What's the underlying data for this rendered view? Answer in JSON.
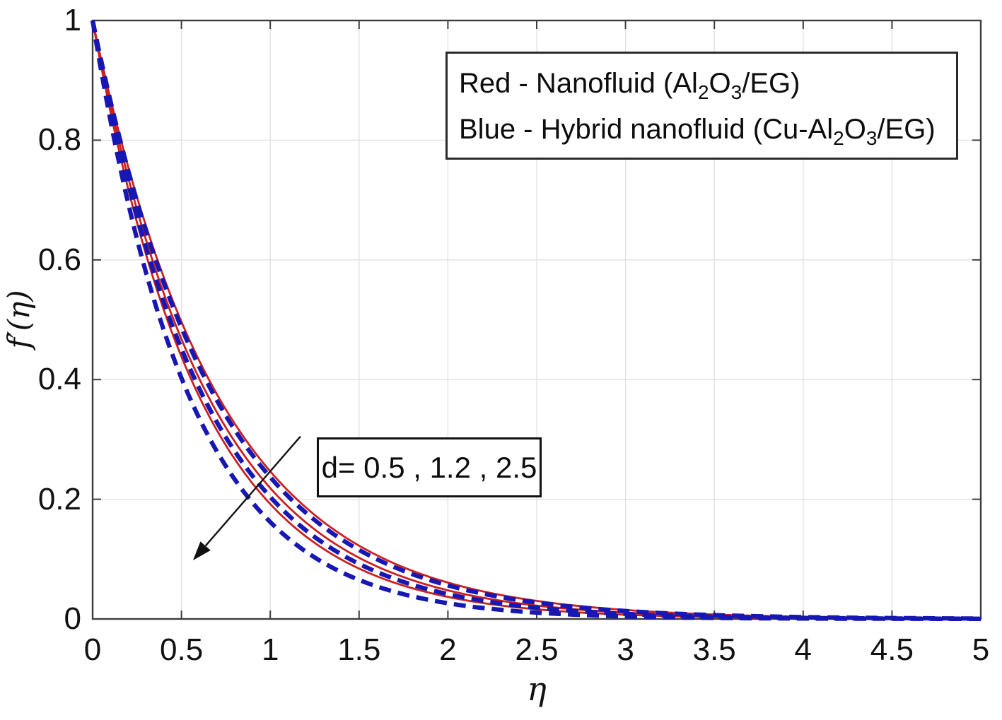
{
  "figure": {
    "background_color": "#ffffff",
    "axis_color": "#3d3d3d",
    "grid_color": "#e0e0e0",
    "text_color": "#111111"
  },
  "chart_data": {
    "type": "line",
    "title": "",
    "xlabel": "η",
    "ylabel": "f′(η)",
    "xlim": [
      0,
      5
    ],
    "ylim": [
      0,
      1
    ],
    "x_ticks": [
      0,
      0.5,
      1,
      1.5,
      2,
      2.5,
      3,
      3.5,
      4,
      4.5,
      5
    ],
    "y_ticks": [
      0,
      0.2,
      0.4,
      0.6,
      0.8,
      1
    ],
    "grid": true,
    "curve_model": "f'(eta) = exp(-k*eta); all curves start at (0,1) and decay toward 0; larger d gives faster decay",
    "series": [
      {
        "name": "Nanofluid (Al2O3/EG), d=0.5",
        "group": "nanofluid",
        "d": 0.5,
        "color": "#cc2020",
        "style": "solid",
        "k": 1.4
      },
      {
        "name": "Nanofluid (Al2O3/EG), d=1.2",
        "group": "nanofluid",
        "d": 1.2,
        "color": "#cc2020",
        "style": "solid",
        "k": 1.52
      },
      {
        "name": "Nanofluid (Al2O3/EG), d=2.5",
        "group": "nanofluid",
        "d": 2.5,
        "color": "#cc2020",
        "style": "solid",
        "k": 1.65
      },
      {
        "name": "Hybrid nanofluid (Cu-Al2O3/EG), d=0.5",
        "group": "hybrid",
        "d": 0.5,
        "color": "#1717b3",
        "style": "dashed",
        "k": 1.44
      },
      {
        "name": "Hybrid nanofluid (Cu-Al2O3/EG), d=1.2",
        "group": "hybrid",
        "d": 1.2,
        "color": "#1717b3",
        "style": "dashed",
        "k": 1.59
      },
      {
        "name": "Hybrid nanofluid (Cu-Al2O3/EG), d=2.5",
        "group": "hybrid",
        "d": 2.5,
        "color": "#1717b3",
        "style": "dashed",
        "k": 1.82
      }
    ],
    "legend": {
      "position": "top-right",
      "lines": [
        {
          "parts": [
            {
              "t": "Red - Nanofluid (Al"
            },
            {
              "t": "2",
              "sub": true
            },
            {
              "t": "O"
            },
            {
              "t": "3",
              "sub": true
            },
            {
              "t": "/EG)"
            }
          ]
        },
        {
          "parts": [
            {
              "t": "Blue - Hybrid nanofluid (Cu-Al"
            },
            {
              "t": "2",
              "sub": true
            },
            {
              "t": "O"
            },
            {
              "t": "3",
              "sub": true
            },
            {
              "t": "/EG)"
            }
          ]
        }
      ]
    },
    "annotation": {
      "text": "d= 0.5 , 1.2 , 2.5",
      "arrow_from": [
        1.17,
        0.305
      ],
      "arrow_to": [
        0.565,
        0.098
      ]
    }
  }
}
